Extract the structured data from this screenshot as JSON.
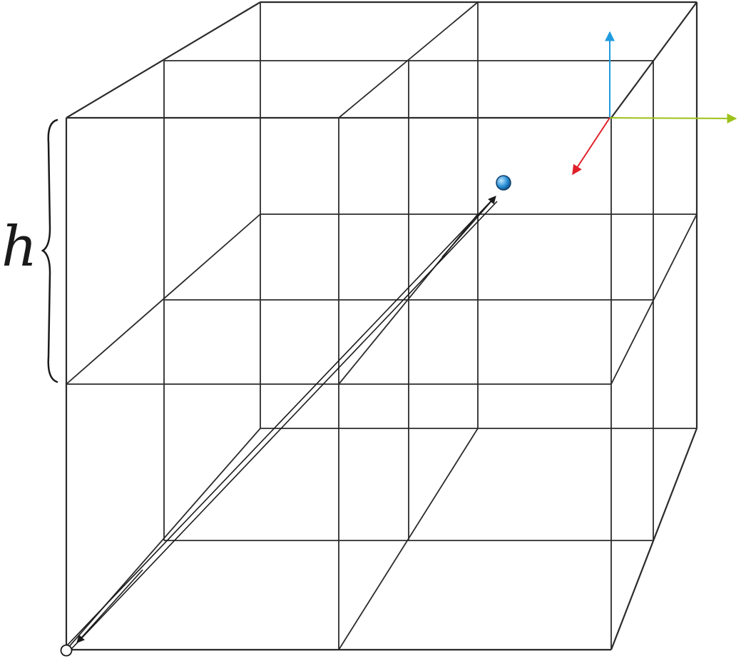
{
  "diagram": {
    "height_label": "h",
    "colors": {
      "lines": "#2b2b2b",
      "axis_up": "#1e9be0",
      "axis_right": "#9cc21a",
      "axis_diag": "#e0202a",
      "point_fill": "#2a8fd6",
      "origin_fill": "#ffffff"
    }
  }
}
